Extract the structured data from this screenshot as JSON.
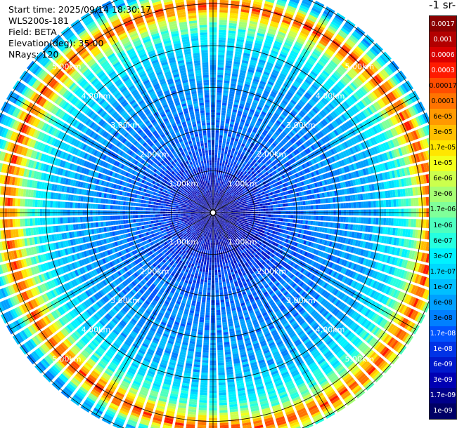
{
  "info": {
    "start_time": "Start time: 2025/09/14 18:30:17",
    "station": "WLS200s-181",
    "field": "Field: BETA",
    "elevation": "Elevation(deg): 35.00",
    "nrays": "NRays: 120"
  },
  "colorbar": {
    "unit_title": "-1 sr-",
    "labels": [
      "0.0017",
      "0.001",
      "0.0006",
      "0.0003",
      "0.00017",
      "0.0001",
      "6e-05",
      "3e-05",
      "1.7e-05",
      "1e-05",
      "6e-06",
      "3e-06",
      "1.7e-06",
      "1e-06",
      "6e-07",
      "3e-07",
      "1.7e-07",
      "1e-07",
      "6e-08",
      "3e-08",
      "1.7e-08",
      "1e-08",
      "6e-09",
      "3e-09",
      "1.7e-09",
      "1e-09"
    ],
    "colors": [
      "#8a0000",
      "#b30000",
      "#d90000",
      "#ff1a00",
      "#ff4d00",
      "#ff7300",
      "#ff9900",
      "#ffbf00",
      "#ffe600",
      "#f2ff1a",
      "#ccff4d",
      "#a6ff73",
      "#80ff99",
      "#4dffbf",
      "#26ffe0",
      "#00f2ff",
      "#00d9ff",
      "#00bfff",
      "#00a0ff",
      "#0080ff",
      "#0055ff",
      "#0033e6",
      "#0019cc",
      "#0000b3",
      "#00008a",
      "#000066"
    ]
  },
  "chart_data": {
    "type": "heatmap",
    "subtype": "polar PPI scan",
    "field": "BETA",
    "elevation_deg": 35.0,
    "n_rays": 120,
    "range_rings_km": [
      1,
      2,
      3,
      4,
      5
    ],
    "ring_labels": [
      "1.00km",
      "2.00km",
      "3.00km",
      "4.00km",
      "5.00km"
    ],
    "max_range_km": 5.6,
    "profile": [
      {
        "range_km": 0.3,
        "beta": 3e-09
      },
      {
        "range_km": 1.0,
        "beta": 1e-08
      },
      {
        "range_km": 1.8,
        "beta": 3e-08
      },
      {
        "range_km": 3.0,
        "beta": 6e-08
      },
      {
        "range_km": 3.6,
        "beta": 1e-07
      },
      {
        "range_km": 4.2,
        "beta": 3e-07
      },
      {
        "range_km": 4.6,
        "beta": 1.7e-06
      },
      {
        "range_km": 4.85,
        "beta": 3e-05
      },
      {
        "range_km": 5.05,
        "beta": 0.0003
      },
      {
        "range_km": 5.25,
        "beta": 1e-05
      },
      {
        "range_km": 5.5,
        "beta": 1e-07
      }
    ],
    "colorbar_levels": [
      "0.0017",
      "0.001",
      "0.0006",
      "0.0003",
      "0.00017",
      "0.0001",
      "6e-05",
      "3e-05",
      "1.7e-05",
      "1e-05",
      "6e-06",
      "3e-06",
      "1.7e-06",
      "1e-06",
      "6e-07",
      "3e-07",
      "1.7e-07",
      "1e-07",
      "6e-08",
      "3e-08",
      "1.7e-08",
      "1e-08",
      "6e-09",
      "3e-09",
      "1.7e-09",
      "1e-09"
    ],
    "grid": true
  }
}
